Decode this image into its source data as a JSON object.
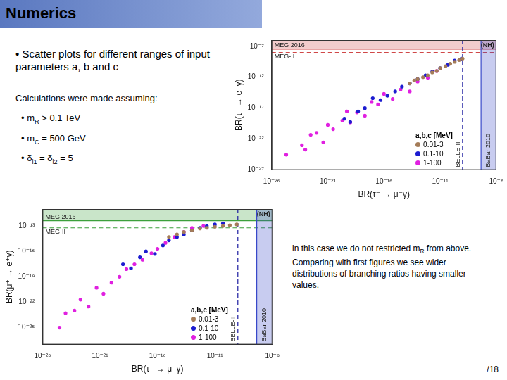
{
  "slide": {
    "title": "Numerics",
    "intro": "• Scatter plots for different ranges of input parameters a, b and c",
    "assumptions_title": "Calculations were made assuming:",
    "assumptions": [
      [
        {
          "t": "• m"
        },
        {
          "sub": "R"
        },
        {
          "t": " > 0.1 TeV"
        }
      ],
      [
        {
          "t": "• m"
        },
        {
          "sub": "C"
        },
        {
          "t": " = 500 GeV"
        }
      ],
      [
        {
          "t": "• δ"
        },
        {
          "sub": "l1"
        },
        {
          "t": " = δ"
        },
        {
          "sub": "l2"
        },
        {
          "t": " = 5"
        }
      ]
    ],
    "note": [
      {
        "t": "in this case we do not restricted m"
      },
      {
        "sub": "R"
      },
      {
        "t": " from above. Comparing with first figures we see wider distributions of branching ratios having smaller values."
      }
    ],
    "page": "/18"
  },
  "chart_data": [
    {
      "type": "scatter",
      "log": true,
      "grid": false,
      "x_label": "BR(τ⁻ → μ⁻γ)",
      "y_label": "BR(τ⁻ → e⁻γ)",
      "xlim": [
        1e-26,
        1e-06
      ],
      "ylim": [
        1e-27,
        1e-06
      ],
      "xticks": [
        {
          "value": 1e-26,
          "label": "10⁻²⁶"
        },
        {
          "value": 1e-21,
          "label": "10⁻²¹"
        },
        {
          "value": 1e-16,
          "label": "10⁻¹⁶"
        },
        {
          "value": 1e-11,
          "label": "10⁻¹¹"
        },
        {
          "value": 1e-06,
          "label": "10⁻⁶"
        }
      ],
      "yticks": [
        {
          "value": 1e-27,
          "label": "10⁻²⁷"
        },
        {
          "value": 1e-22,
          "label": "10⁻²²"
        },
        {
          "value": 1e-17,
          "label": "10⁻¹⁷"
        },
        {
          "value": 1e-12,
          "label": "10⁻¹²"
        },
        {
          "value": 1e-07,
          "label": "10⁻⁷"
        }
      ],
      "annotation": "(NH)",
      "legend": "lower right",
      "legend_title": "a,b,c [MeV]",
      "limits": [
        {
          "axis": "y",
          "label": "MEG 2016",
          "value": 3.3e-08,
          "line_style": "solid",
          "color": "#d04848"
        },
        {
          "axis": "y",
          "label": "MEG-II",
          "value": 1e-08,
          "line_style": "dashed",
          "color": "#d04848"
        },
        {
          "axis": "x",
          "label": "BELLE-II",
          "value": 1e-09,
          "line_style": "dashed",
          "color": "#1a1aa0"
        },
        {
          "axis": "x",
          "label": "BaBar 2010",
          "value": 4.4e-08,
          "line_style": "solid",
          "color": "#3848c8"
        }
      ],
      "series": [
        {
          "name": "0.01-3",
          "color": "#a47c58",
          "x": [
            2e-14,
            5e-14,
            1e-13,
            3e-13,
            8e-13,
            2e-12,
            5e-12,
            1e-11,
            3e-11,
            8e-11,
            2e-10,
            5e-10,
            1e-09
          ],
          "values": [
            1e-13,
            3e-13,
            5e-13,
            1e-12,
            2e-12,
            6e-12,
            1e-11,
            3e-11,
            6e-11,
            1.5e-10,
            3e-10,
            6e-10,
            1e-09
          ]
        },
        {
          "name": "0.1-10",
          "color": "#1c1cd0",
          "x": [
            3e-20,
            1e-19,
            5e-19,
            2e-18,
            1e-17,
            5e-17,
            2e-16,
            1e-15,
            4e-15,
            2e-14,
            1e-13,
            5e-13,
            2e-12,
            1e-11,
            5e-11,
            2e-10,
            8e-10
          ],
          "values": [
            2e-19,
            6e-20,
            3e-18,
            1e-17,
            4e-16,
            2e-16,
            1e-15,
            5e-15,
            3e-14,
            1e-13,
            5e-13,
            2e-12,
            8e-12,
            3e-11,
            1e-10,
            5e-10,
            1e-09
          ]
        },
        {
          "name": "1-100",
          "color": "#e020e0",
          "x": [
            2e-25,
            5e-24,
            1e-23,
            3e-23,
            1e-22,
            4e-22,
            1e-21,
            3e-21,
            2e-20,
            5e-20,
            1e-19,
            4e-19,
            2e-18,
            8e-18,
            3e-17,
            1e-16,
            6e-16,
            3e-15,
            2e-14,
            1e-13,
            8e-13,
            5e-12
          ],
          "values": [
            3e-25,
            1e-23,
            2e-24,
            5e-22,
            1e-21,
            3e-23,
            2e-20,
            4e-21,
            1e-19,
            3e-18,
            5e-20,
            2e-18,
            6e-19,
            1e-16,
            4e-17,
            2e-15,
            3e-16,
            1e-14,
            5e-15,
            2e-13,
            8e-13,
            1e-11
          ]
        }
      ]
    },
    {
      "type": "scatter",
      "log": true,
      "grid": false,
      "x_label": "BR(τ⁻ → μ⁻γ)",
      "y_label": "BR(μ⁺ → e⁺γ)",
      "xlim": [
        1e-26,
        1e-06
      ],
      "ylim": [
        1e-27,
        1e-11
      ],
      "xticks": [
        {
          "value": 1e-26,
          "label": "10⁻²⁶"
        },
        {
          "value": 1e-21,
          "label": "10⁻²¹"
        },
        {
          "value": 1e-16,
          "label": "10⁻¹⁶"
        },
        {
          "value": 1e-11,
          "label": "10⁻¹¹"
        },
        {
          "value": 1e-06,
          "label": "10⁻⁶"
        }
      ],
      "yticks": [
        {
          "value": 1e-25,
          "label": "10⁻²⁵"
        },
        {
          "value": 1e-22,
          "label": "10⁻²²"
        },
        {
          "value": 1e-19,
          "label": "10⁻¹⁹"
        },
        {
          "value": 1e-16,
          "label": "10⁻¹⁶"
        },
        {
          "value": 1e-13,
          "label": "10⁻¹³"
        }
      ],
      "annotation": "(NH)",
      "legend": "lower right",
      "legend_title": "a,b,c [MeV]",
      "limits": [
        {
          "axis": "y",
          "label": "MEG 2016",
          "value": 4.2e-13,
          "line_style": "solid",
          "color": "#3ca03c"
        },
        {
          "axis": "y",
          "label": "MEG-II",
          "value": 6e-14,
          "line_style": "dashed",
          "color": "#3ca03c"
        },
        {
          "axis": "x",
          "label": "BELLE-II",
          "value": 1e-09,
          "line_style": "dashed",
          "color": "#1a1aa0"
        },
        {
          "axis": "x",
          "label": "BaBar 2010",
          "value": 4.4e-08,
          "line_style": "solid",
          "color": "#3848c8"
        }
      ],
      "series": [
        {
          "name": "0.01-3",
          "color": "#a47c58",
          "x": [
            1e-15,
            5e-15,
            2e-14,
            1e-13,
            5e-13,
            2e-12,
            1e-11,
            5e-11,
            2e-10,
            8e-10
          ],
          "values": [
            5e-15,
            1e-14,
            2e-14,
            3e-14,
            5e-14,
            6e-14,
            8e-14,
            1e-13,
            1.2e-13,
            1.5e-13
          ]
        },
        {
          "name": "0.1-10",
          "color": "#1c1cd0",
          "x": [
            1e-19,
            5e-19,
            3e-18,
            1e-17,
            6e-17,
            3e-16,
            1e-15,
            5e-15,
            2e-14,
            1e-13,
            5e-13,
            2e-12,
            1e-11,
            5e-11
          ],
          "values": [
            3e-18,
            1e-18,
            2e-17,
            1e-16,
            5e-17,
            5e-16,
            2e-15,
            5e-15,
            1e-14,
            3e-14,
            6e-14,
            1e-13,
            1.5e-13,
            2e-13
          ]
        },
        {
          "name": "1-100",
          "color": "#e020e0",
          "x": [
            3e-25,
            1e-24,
            6e-24,
            2e-23,
            1e-22,
            5e-22,
            2e-21,
            1e-20,
            5e-20,
            2e-19,
            1e-18,
            5e-18,
            3e-17,
            1e-16,
            5e-16,
            3e-15,
            2e-14,
            1e-13,
            1e-12
          ],
          "values": [
            1e-25,
            5e-24,
            1e-23,
            2e-22,
            3e-23,
            5e-21,
            1e-21,
            2e-20,
            1e-19,
            8e-19,
            3e-18,
            1e-17,
            6e-17,
            2e-16,
            1e-15,
            5e-15,
            2e-14,
            6e-14,
            1e-13
          ]
        }
      ]
    }
  ]
}
